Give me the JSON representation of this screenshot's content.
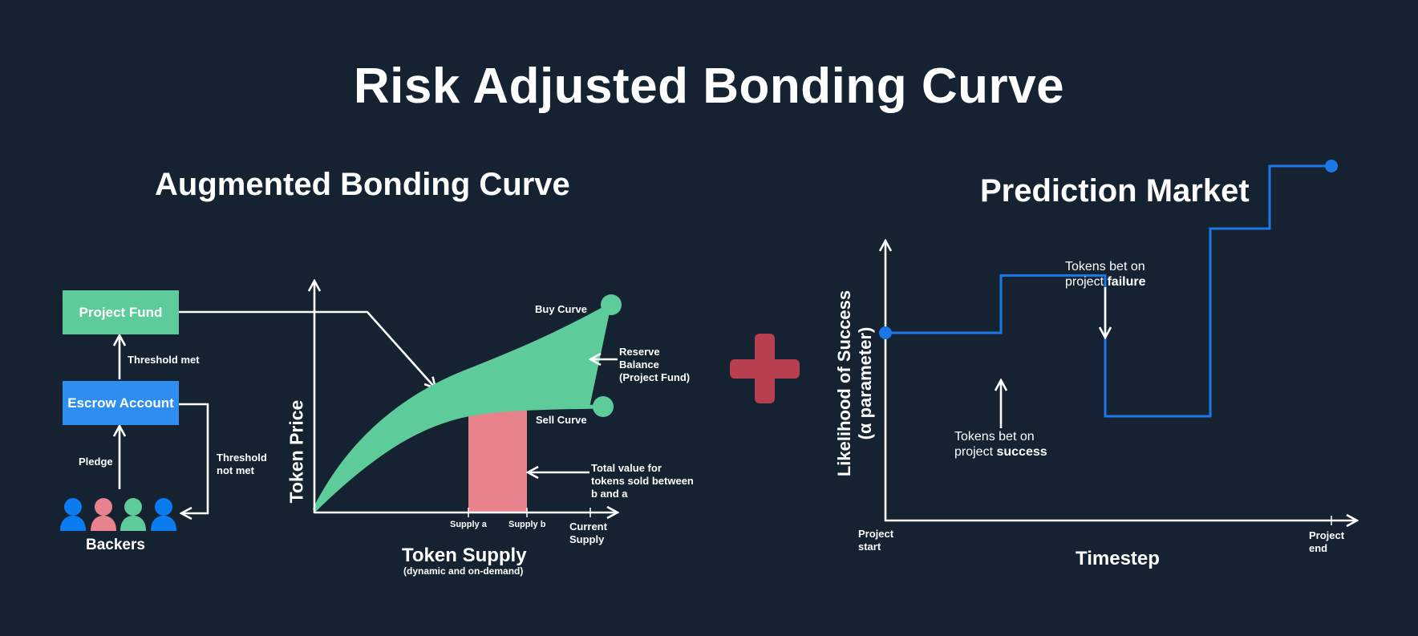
{
  "title": "Risk Adjusted Bonding Curve",
  "left": {
    "title": "Augmented Bonding Curve",
    "project_fund": "Project Fund",
    "escrow_account": "Escrow Account",
    "threshold_met": "Threshold met",
    "threshold_not_met_1": "Threshold",
    "threshold_not_met_2": "not met",
    "pledge": "Pledge",
    "backers": "Backers",
    "y_axis": "Token Price",
    "x_axis": "Token Supply",
    "x_axis_sub": "(dynamic and on-demand)",
    "buy_curve": "Buy Curve",
    "sell_curve": "Sell Curve",
    "reserve_1": "Reserve",
    "reserve_2": "Balance",
    "reserve_3": "(Project Fund)",
    "total_1": "Total value for",
    "total_2": "tokens sold between",
    "total_3": "b and a",
    "supply_a": "Supply a",
    "supply_b": "Supply b",
    "current_1": "Current",
    "current_2": "Supply",
    "backer_colors": [
      "#0a7cf0",
      "#e8828c",
      "#5ecc9a",
      "#0a7cf0"
    ]
  },
  "right": {
    "title": "Prediction Market",
    "y_axis_1": "Likelihood of Success",
    "y_axis_2": "(α parameter)",
    "x_axis": "Timestep",
    "project_start_1": "Project",
    "project_start_2": "start",
    "project_end_1": "Project",
    "project_end_2": "end",
    "failure_1": "Tokens bet on",
    "failure_2": "project ",
    "failure_bold": "failure",
    "success_1": "Tokens bet on",
    "success_2": "project ",
    "success_bold": "success",
    "likelihood_steps": [
      0.36,
      0.36,
      0.47,
      0.47,
      0.2,
      0.2,
      0.56,
      0.56,
      0.68,
      0.68
    ]
  },
  "colors": {
    "background": "#152232",
    "green": "#5ecc9a",
    "blue": "#2e8ef0",
    "line_blue": "#1a78e6",
    "pink": "#e8828c",
    "plus_red": "#b83f4f"
  }
}
